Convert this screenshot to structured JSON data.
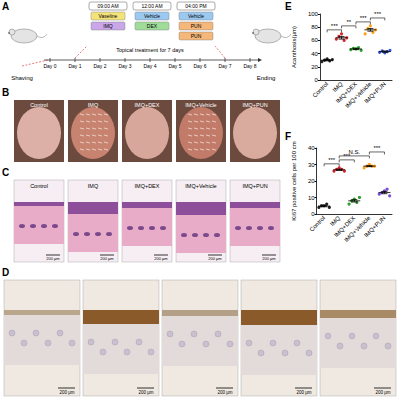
{
  "chart_data": [
    {
      "type": "scatter",
      "title": "E",
      "ylabel": "Acanthosis(μm)",
      "categories": [
        "Control",
        "IMQ",
        "IMQ+DEX",
        "IMQ+Vehicle",
        "IMQ+PUN"
      ],
      "colors": [
        "#222222",
        "#d62728",
        "#2ca02c",
        "#ff9f1c",
        "#3b5bdb"
      ],
      "points": [
        [
          28,
          30,
          32,
          29,
          31
        ],
        [
          62,
          66,
          70,
          60,
          64
        ],
        [
          46,
          48,
          47,
          49,
          45
        ],
        [
          70,
          78,
          82,
          72,
          76
        ],
        [
          42,
          44,
          41,
          43,
          45
        ]
      ],
      "values": [
        30,
        64,
        47,
        76,
        43
      ],
      "errors": [
        1,
        2,
        1,
        2,
        1
      ],
      "ylim": [
        0,
        100
      ],
      "yticks": [
        0,
        20,
        40,
        60,
        80,
        100
      ],
      "annotations": [
        {
          "from": 0,
          "to": 1,
          "text": "***"
        },
        {
          "from": 1,
          "to": 2,
          "text": "**"
        },
        {
          "from": 2,
          "to": 3,
          "text": "***"
        },
        {
          "from": 3,
          "to": 4,
          "text": "***"
        }
      ]
    },
    {
      "type": "scatter",
      "title": "F",
      "ylabel": "Ki67 positive cells per 100 cm",
      "categories": [
        "Control",
        "IMQ",
        "IMQ+DEX",
        "IMQ+Vehicle",
        "IMQ+PUN"
      ],
      "colors": [
        "#222222",
        "#d62728",
        "#2ca02c",
        "#ff9f1c",
        "#7b4fd6"
      ],
      "points": [
        [
          4,
          5,
          5,
          6,
          4
        ],
        [
          26,
          27,
          28,
          27,
          26
        ],
        [
          6,
          8,
          9,
          7,
          10
        ],
        [
          28,
          29,
          30,
          29,
          29
        ],
        [
          12,
          13,
          14,
          15,
          11
        ]
      ],
      "values": [
        4.8,
        26.8,
        8,
        29,
        13
      ],
      "errors": [
        0.4,
        0.4,
        0.7,
        0.3,
        0.7
      ],
      "ylim": [
        0,
        40
      ],
      "yticks": [
        0,
        10,
        20,
        30,
        40
      ],
      "annotations": [
        {
          "from": 0,
          "to": 1,
          "text": "***"
        },
        {
          "from": 1,
          "to": 2,
          "text": "***"
        },
        {
          "from": 1,
          "to": 3,
          "text": "N.S."
        },
        {
          "from": 3,
          "to": 4,
          "text": "***"
        }
      ]
    }
  ],
  "figure": {
    "A": {
      "label": "A",
      "shaving": "Shaving",
      "ending": "Ending",
      "treatment": "Topical treatment for 7 days",
      "days": [
        "Day 0",
        "Day 1",
        "Day 2",
        "Day 3",
        "Day 4",
        "Day 5",
        "Day 6",
        "Day 7",
        "Day 8"
      ],
      "schedule": [
        {
          "time": "09:00 AM",
          "agents": [
            "Vaseline",
            "IMQ"
          ]
        },
        {
          "time": "12:00 AM",
          "agents": [
            "Vehicle",
            "DEX"
          ]
        },
        {
          "time": "04:00 PM",
          "agents": [
            "Vehicle",
            "PUN",
            "PUN"
          ]
        }
      ]
    },
    "B": {
      "label": "B",
      "panels": [
        "Control",
        "IMQ",
        "IMQ+DEX",
        "IMQ+Vehicle",
        "IMQ+PUN"
      ]
    },
    "C": {
      "label": "C",
      "panels": [
        "Control",
        "IMQ",
        "IMQ+DEX",
        "IMQ+Vehicle",
        "IMQ+PUN"
      ],
      "scale_bar": "200 μm"
    },
    "D": {
      "label": "D",
      "panels_count_text": [],
      "scale_bar": "200 μm"
    }
  }
}
